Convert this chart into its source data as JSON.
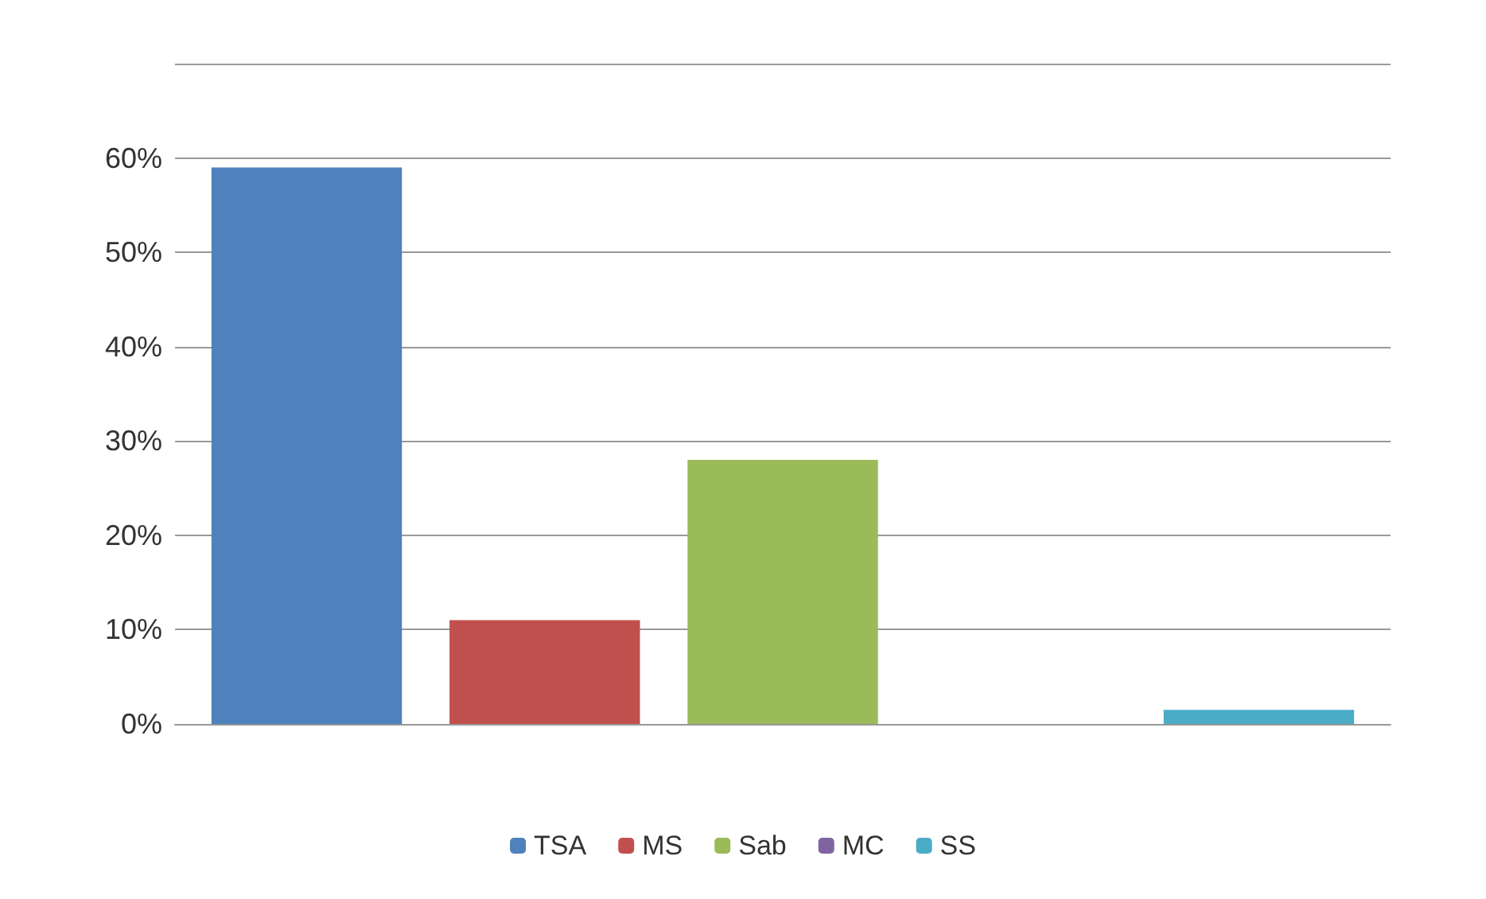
{
  "chart_data": {
    "type": "bar",
    "categories": [
      null
    ],
    "series": [
      {
        "name": "TSA",
        "color": "#4f81bd",
        "values": [
          59
        ]
      },
      {
        "name": "MS",
        "color": "#c0504d",
        "values": [
          11
        ]
      },
      {
        "name": "Sab",
        "color": "#9bbb59",
        "values": [
          28
        ]
      },
      {
        "name": "MC",
        "color": "#8064a2",
        "values": [
          0
        ]
      },
      {
        "name": "SS",
        "color": "#4bacc6",
        "values": [
          1.5
        ]
      }
    ],
    "ylim": [
      0,
      70
    ],
    "yticks": [
      {
        "value": 0,
        "label": "0%"
      },
      {
        "value": 10,
        "label": "10%"
      },
      {
        "value": 20,
        "label": "20%"
      },
      {
        "value": 30,
        "label": "30%"
      },
      {
        "value": 40,
        "label": "40%"
      },
      {
        "value": 50,
        "label": "50%"
      },
      {
        "value": 60,
        "label": "60%"
      },
      {
        "value": 70,
        "label": null
      }
    ],
    "grid": "y",
    "legend": "bottom"
  }
}
